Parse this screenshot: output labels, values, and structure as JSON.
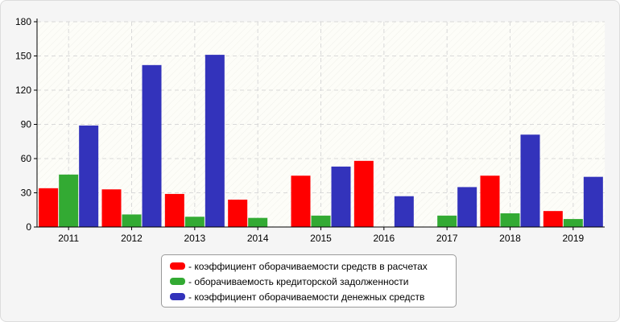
{
  "chart_data": {
    "type": "bar",
    "categories": [
      "2011",
      "2012",
      "2013",
      "2014",
      "2015",
      "2016",
      "2017",
      "2018",
      "2019"
    ],
    "series": [
      {
        "name": "- коэффициент оборачиваемости средств в расчетах",
        "color": "#ff0000",
        "values": [
          34,
          33,
          29,
          24,
          45,
          58,
          0,
          45,
          14
        ]
      },
      {
        "name": "- оборачиваемость кредиторской задолженности",
        "color": "#33aa33",
        "values": [
          46,
          11,
          9,
          8,
          10,
          0,
          10,
          12,
          7
        ]
      },
      {
        "name": "- коэффициент оборачиваемости денежных средств",
        "color": "#3333bb",
        "values": [
          89,
          142,
          151,
          0,
          53,
          27,
          35,
          81,
          44
        ]
      }
    ],
    "ylim": [
      0,
      180
    ],
    "yticks": [
      0,
      30,
      60,
      90,
      120,
      150,
      180
    ],
    "grid": true,
    "legend_position": "bottom-center"
  }
}
